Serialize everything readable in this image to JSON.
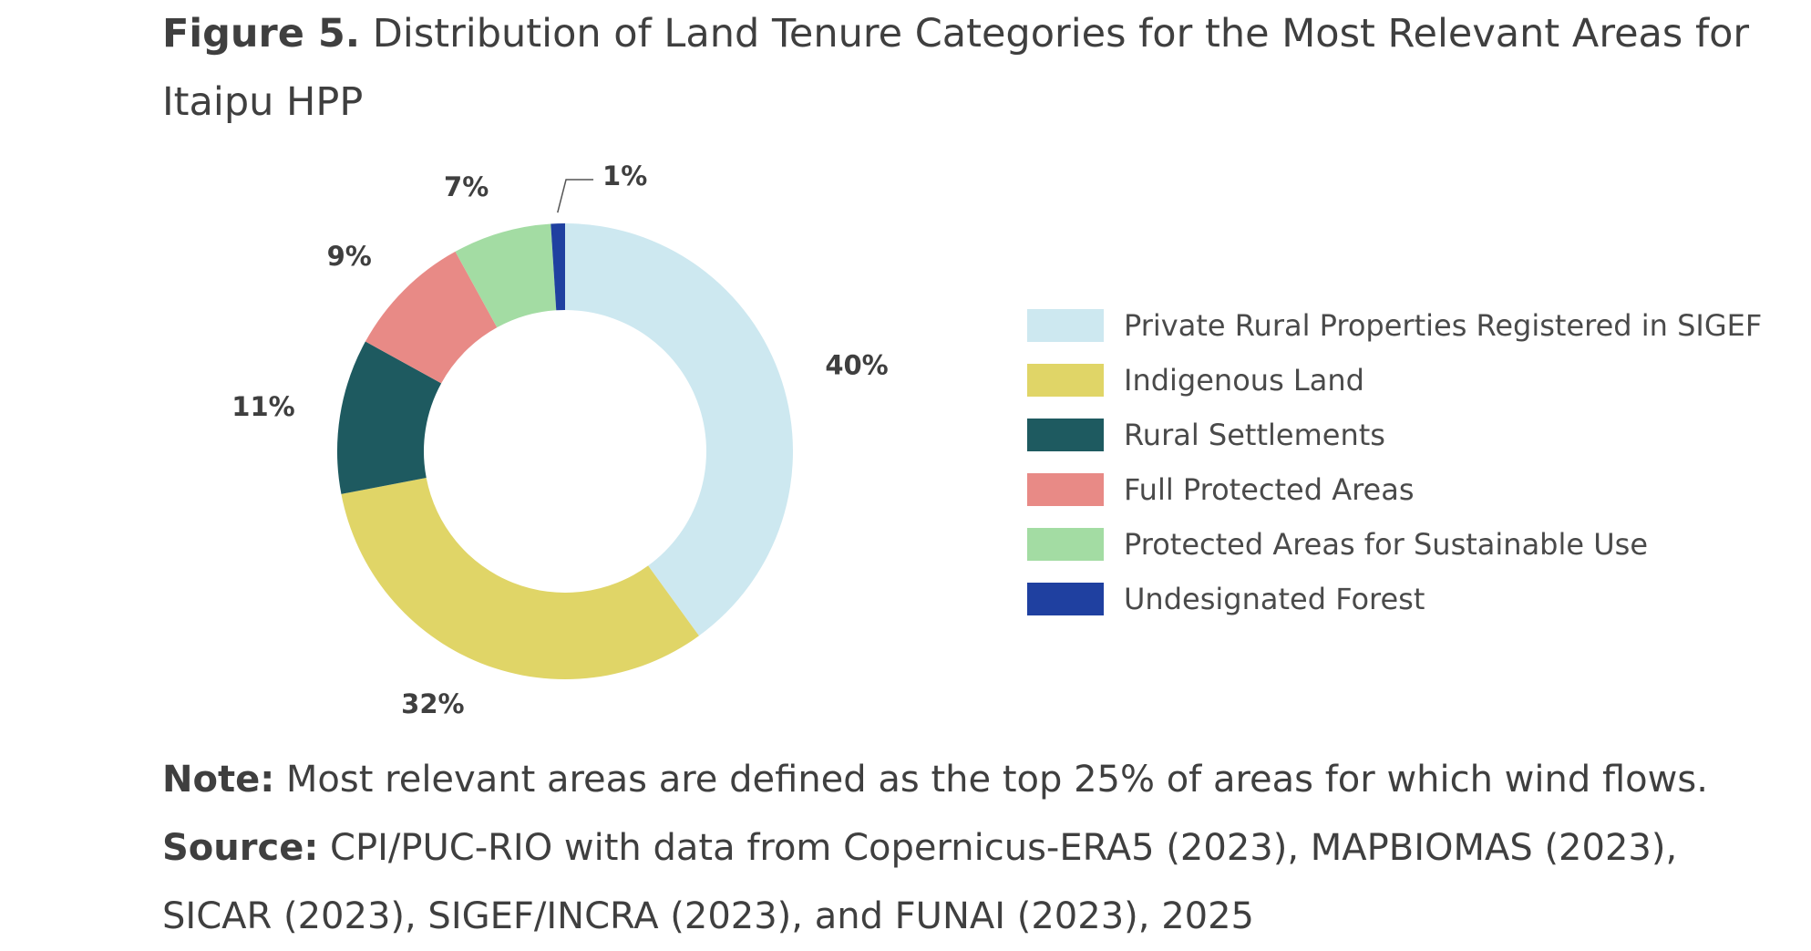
{
  "title": {
    "figure_label": "Figure 5.",
    "text": "Distribution of Land Tenure Categories for the Most Relevant Areas for Itaipu HPP"
  },
  "chart_data": {
    "type": "pie",
    "donut": true,
    "title": "",
    "series": [
      {
        "name": "Private Rural Properties Registered in SIGEF",
        "value": 40,
        "label": "40%",
        "color": "#cde8f0"
      },
      {
        "name": "Indigenous Land",
        "value": 32,
        "label": "32%",
        "color": "#e0d567"
      },
      {
        "name": "Rural Settlements",
        "value": 11,
        "label": "11%",
        "color": "#1e5a60"
      },
      {
        "name": "Full Protected Areas",
        "value": 9,
        "label": "9%",
        "color": "#e88a86"
      },
      {
        "name": "Protected Areas for Sustainable Use",
        "value": 7,
        "label": "7%",
        "color": "#a3dca3"
      },
      {
        "name": "Undesignated Forest",
        "value": 1,
        "label": "1%",
        "color": "#1f40a0"
      }
    ],
    "legend_position": "right"
  },
  "notes": {
    "note_label": "Note:",
    "note_text": "Most relevant areas are defined as the top 25% of areas for which wind flows.",
    "source_label": "Source:",
    "source_text": "CPI/PUC-RIO with data from Copernicus-ERA5 (2023), MAPBIOMAS (2023), SICAR (2023), SIGEF/INCRA (2023), and FUNAI (2023), 2025"
  }
}
